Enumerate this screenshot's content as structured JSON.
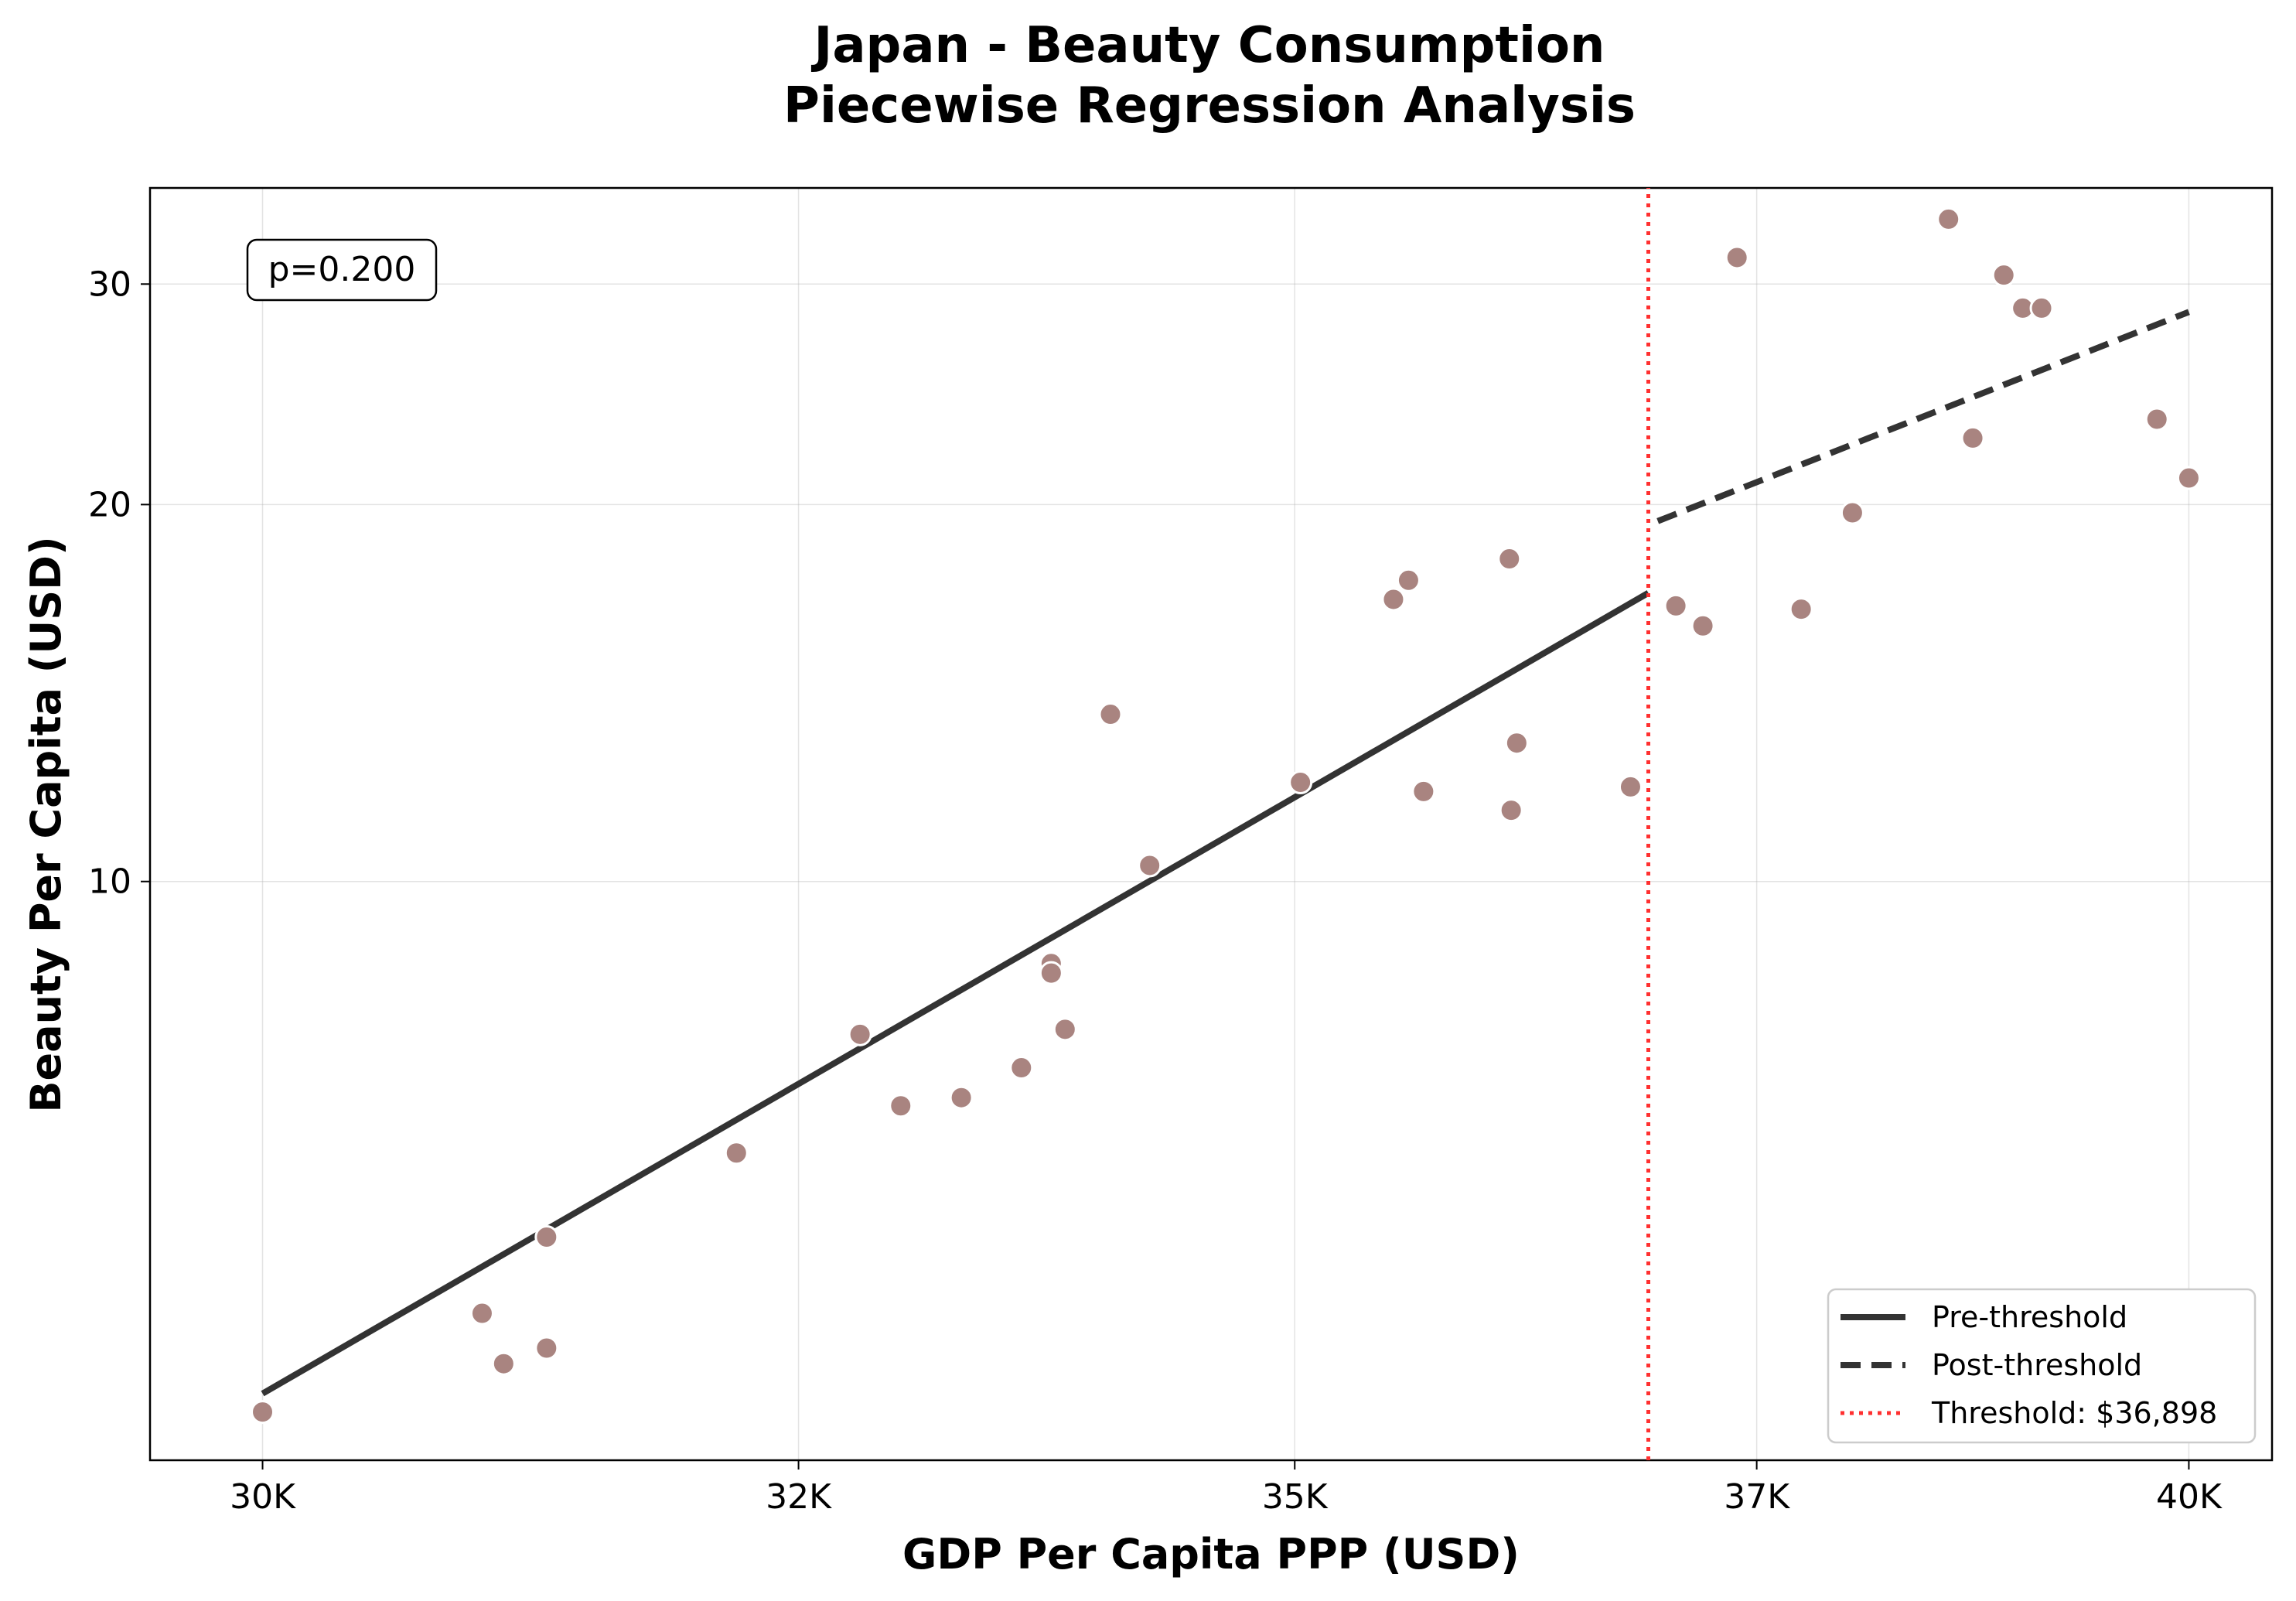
{
  "chart_data": {
    "type": "scatter",
    "title": [
      "Japan - Beauty Consumption",
      "Piecewise Regression Analysis"
    ],
    "xlabel": "GDP Per Capita PPP (USD)",
    "ylabel": "Beauty Per Capita (USD)",
    "x_scale": "log",
    "y_scale": "log",
    "xlim": [
      29500,
      40500
    ],
    "ylim": [
      3.45,
      35.8
    ],
    "x_ticks": [
      {
        "value": 30000,
        "label": "30K"
      },
      {
        "value": 32500,
        "label": "32K"
      },
      {
        "value": 35000,
        "label": "35K"
      },
      {
        "value": 37500,
        "label": "37K"
      },
      {
        "value": 40000,
        "label": "40K"
      }
    ],
    "y_ticks": [
      {
        "value": 10,
        "label": "10"
      },
      {
        "value": 20,
        "label": "20"
      },
      {
        "value": 30,
        "label": "30"
      }
    ],
    "grid": true,
    "legend_position": "bottom-right",
    "annotation": "p=0.200",
    "threshold": 36898,
    "colors": {
      "points": "#a98480",
      "point_edge": "#ffffff",
      "fit_line": "#333333",
      "threshold": "#ff3030"
    },
    "series": [
      {
        "name": "Pre-threshold",
        "style": "solid",
        "x": [
          30000,
          36898
        ],
        "y": [
          3.9,
          17.0
        ]
      },
      {
        "name": "Post-threshold",
        "style": "dashed",
        "x": [
          36950,
          40000
        ],
        "y": [
          19.4,
          28.5
        ]
      },
      {
        "name": "Threshold: $36,898",
        "style": "dotted",
        "x": [
          36898,
          36898
        ],
        "y": [
          3.45,
          35.8
        ]
      }
    ],
    "points": [
      {
        "x": 30000,
        "y": 3.77
      },
      {
        "x": 31000,
        "y": 4.52
      },
      {
        "x": 31100,
        "y": 4.12
      },
      {
        "x": 31300,
        "y": 4.24
      },
      {
        "x": 31300,
        "y": 5.2
      },
      {
        "x": 32200,
        "y": 6.07
      },
      {
        "x": 32800,
        "y": 7.55
      },
      {
        "x": 33000,
        "y": 6.62
      },
      {
        "x": 33300,
        "y": 6.72
      },
      {
        "x": 33600,
        "y": 7.1
      },
      {
        "x": 33750,
        "y": 8.6
      },
      {
        "x": 33750,
        "y": 8.45
      },
      {
        "x": 33820,
        "y": 7.62
      },
      {
        "x": 34050,
        "y": 13.6
      },
      {
        "x": 34250,
        "y": 10.3
      },
      {
        "x": 35030,
        "y": 12.0
      },
      {
        "x": 35520,
        "y": 16.8
      },
      {
        "x": 35600,
        "y": 17.4
      },
      {
        "x": 35680,
        "y": 11.8
      },
      {
        "x": 36150,
        "y": 11.4
      },
      {
        "x": 36140,
        "y": 18.1
      },
      {
        "x": 36180,
        "y": 12.9
      },
      {
        "x": 36800,
        "y": 11.9
      },
      {
        "x": 37050,
        "y": 16.6
      },
      {
        "x": 37200,
        "y": 16.0
      },
      {
        "x": 37390,
        "y": 31.5
      },
      {
        "x": 37750,
        "y": 16.5
      },
      {
        "x": 38040,
        "y": 19.7
      },
      {
        "x": 38590,
        "y": 33.8
      },
      {
        "x": 38730,
        "y": 22.6
      },
      {
        "x": 38910,
        "y": 30.5
      },
      {
        "x": 39020,
        "y": 28.7
      },
      {
        "x": 39130,
        "y": 28.7
      },
      {
        "x": 39810,
        "y": 23.4
      },
      {
        "x": 40000,
        "y": 21.0
      }
    ]
  }
}
